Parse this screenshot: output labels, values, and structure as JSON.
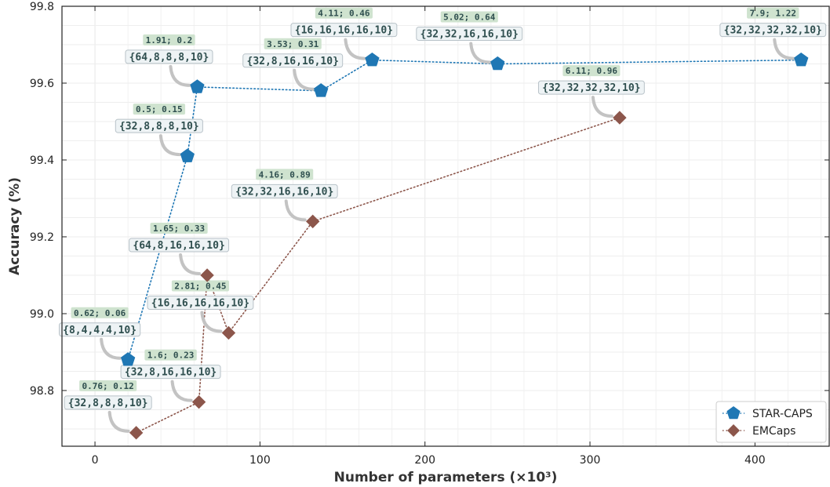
{
  "chart_data": {
    "type": "scatter",
    "xlabel": "Number of parameters (×10³)",
    "ylabel": "Accuracy (%)",
    "xlim": [
      -20,
      445
    ],
    "ylim": [
      98.655,
      99.8
    ],
    "x_ticks": [
      0,
      100,
      200,
      300,
      400
    ],
    "y_ticks": [
      98.8,
      99.0,
      99.2,
      99.4,
      99.6,
      99.8
    ],
    "x_tick_labels": [
      "0",
      "100",
      "200",
      "300",
      "400"
    ],
    "y_tick_labels": [
      "98.8",
      "99.0",
      "99.2",
      "99.4",
      "99.6",
      "99.8"
    ],
    "grid": true,
    "legend_position": "bottom-right",
    "series": [
      {
        "name": "STAR-CAPS",
        "color": "#1f77b4",
        "marker": "pentagon",
        "points": [
          {
            "x": 20,
            "y": 98.88,
            "top": "0.62; 0.06",
            "bottom": "{8,4,4,4,10}"
          },
          {
            "x": 56,
            "y": 99.41,
            "top": "0.5; 0.15",
            "bottom": "{32,8,8,8,10}"
          },
          {
            "x": 62,
            "y": 99.59,
            "top": "1.91; 0.2",
            "bottom": "{64,8,8,8,10}"
          },
          {
            "x": 137,
            "y": 99.58,
            "top": "3.53; 0.31",
            "bottom": "{32,8,16,16,10}"
          },
          {
            "x": 168,
            "y": 99.66,
            "top": "4.11; 0.46",
            "bottom": "{16,16,16,16,10}"
          },
          {
            "x": 244,
            "y": 99.65,
            "top": "5.02; 0.64",
            "bottom": "{32,32,16,16,10}"
          },
          {
            "x": 428,
            "y": 99.66,
            "top": "7.9; 1.22",
            "bottom": "{32,32,32,32,10}"
          }
        ]
      },
      {
        "name": "EMCaps",
        "color": "#8c564b",
        "marker": "diamond",
        "points": [
          {
            "x": 25,
            "y": 98.69,
            "top": "0.76; 0.12",
            "bottom": "{32,8,8,8,10}"
          },
          {
            "x": 63,
            "y": 98.77,
            "top": "1.6; 0.23",
            "bottom": "{32,8,16,16,10}"
          },
          {
            "x": 68,
            "y": 99.1,
            "top": "1.65; 0.33",
            "bottom": "{64,8,16,16,10}"
          },
          {
            "x": 81,
            "y": 98.95,
            "top": "2.81; 0.45",
            "bottom": "{16,16,16,16,10}"
          },
          {
            "x": 132,
            "y": 99.24,
            "top": "4.16; 0.89",
            "bottom": "{32,32,16,16,10}"
          },
          {
            "x": 318,
            "y": 99.51,
            "top": "6.11; 0.96",
            "bottom": "{32,32,32,32,10}"
          }
        ]
      }
    ]
  }
}
